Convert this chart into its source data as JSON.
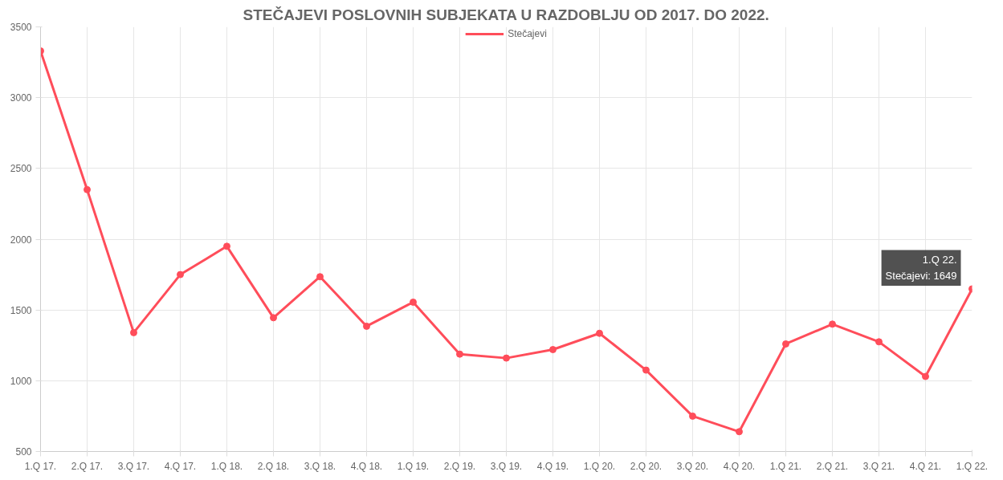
{
  "chart_data": {
    "type": "line",
    "title": "STEČAJEVI POSLOVNIH SUBJEKATA U RAZDOBLJU OD 2017. DO 2022.",
    "categories": [
      "1.Q 17.",
      "2.Q 17.",
      "3.Q 17.",
      "4.Q 17.",
      "1.Q 18.",
      "2.Q 18.",
      "3.Q 18.",
      "4.Q 18.",
      "1.Q 19.",
      "2.Q 19.",
      "3.Q 19.",
      "4.Q 19.",
      "1.Q 20.",
      "2.Q 20.",
      "3.Q 20.",
      "4.Q 20.",
      "1.Q 21.",
      "2.Q 21.",
      "3.Q 21.",
      "4.Q 21.",
      "1.Q 22."
    ],
    "series": [
      {
        "name": "Stečajevi",
        "color": "#ff4d5a",
        "values": [
          3330,
          2350,
          1340,
          1750,
          1950,
          1445,
          1735,
          1385,
          1555,
          1188,
          1160,
          1220,
          1335,
          1075,
          750,
          640,
          1260,
          1400,
          1275,
          1030,
          1649
        ]
      }
    ],
    "ylim": [
      500,
      3500
    ],
    "yticks": [
      500,
      1000,
      1500,
      2000,
      2500,
      3000,
      3500
    ],
    "grid": true,
    "legend": "top",
    "marker": "circle",
    "line_style": "solid",
    "annotations": [
      {
        "text": "1.Q 22.\nStečajevi: 1649",
        "x": "1.Q 22.",
        "y": 1649
      }
    ]
  }
}
